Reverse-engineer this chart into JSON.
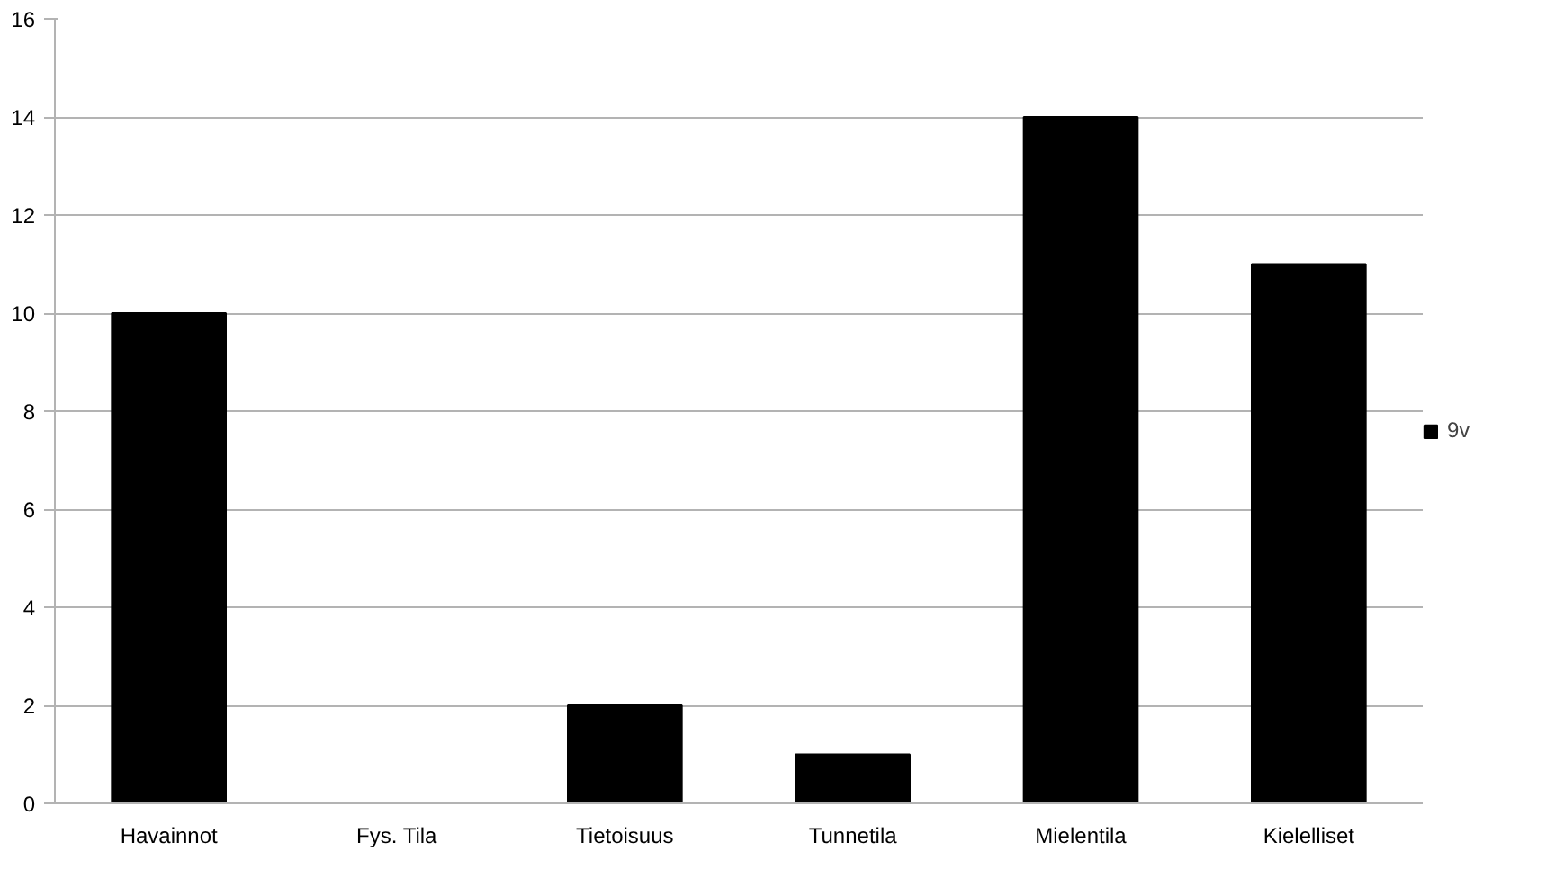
{
  "chart_data": {
    "type": "bar",
    "categories": [
      "Havainnot",
      "Fys. Tila",
      "Tietoisuus",
      "Tunnetila",
      "Mielentila",
      "Kielelliset"
    ],
    "series": [
      {
        "name": "9v",
        "color": "#000000",
        "values": [
          10,
          0,
          2,
          1,
          14,
          11
        ]
      }
    ],
    "ylim": [
      0,
      16
    ],
    "yticks": [
      0,
      2,
      4,
      6,
      8,
      10,
      12,
      14,
      16
    ],
    "grid": "y",
    "legend": "right"
  }
}
